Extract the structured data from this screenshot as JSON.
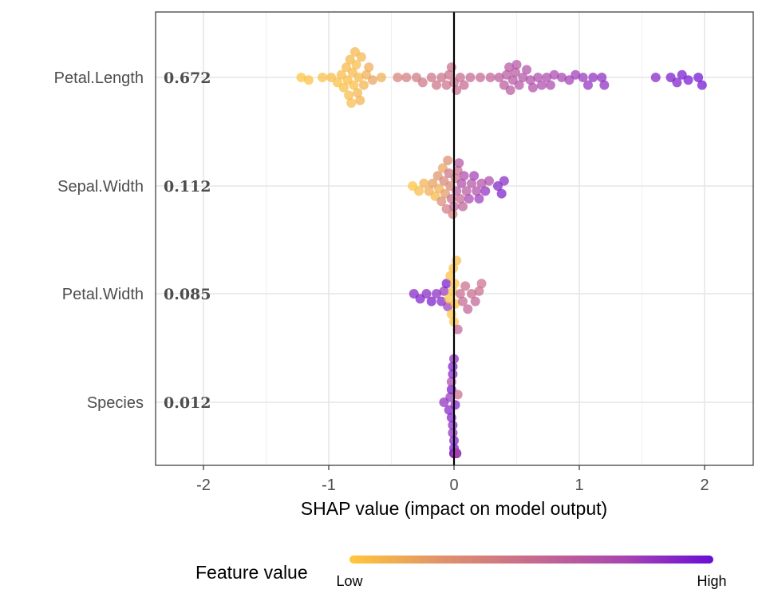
{
  "chart_data": {
    "type": "scatter",
    "subtype": "shap-beeswarm",
    "xlabel": "SHAP value (impact on model output)",
    "xlim": [
      -2.4,
      2.4
    ],
    "xticks": [
      -2,
      -1,
      0,
      1,
      2
    ],
    "xtick_labels": [
      "-2",
      "-1",
      "0",
      "1",
      "2"
    ],
    "grid": true,
    "features": [
      {
        "name": "Petal.Length",
        "importance": "0.672",
        "points": [
          {
            "x": -1.22,
            "v": 0.02
          },
          {
            "x": -1.16,
            "v": 0.03
          },
          {
            "x": -1.05,
            "v": 0.04
          },
          {
            "x": -0.98,
            "v": 0.05
          },
          {
            "x": -0.93,
            "v": 0.04
          },
          {
            "x": -0.9,
            "v": 0.06
          },
          {
            "x": -0.88,
            "v": 0.05
          },
          {
            "x": -0.86,
            "v": 0.07
          },
          {
            "x": -0.85,
            "v": 0.05
          },
          {
            "x": -0.84,
            "v": 0.06
          },
          {
            "x": -0.83,
            "v": 0.08
          },
          {
            "x": -0.82,
            "v": 0.06
          },
          {
            "x": -0.81,
            "v": 0.07
          },
          {
            "x": -0.8,
            "v": 0.05
          },
          {
            "x": -0.79,
            "v": 0.08
          },
          {
            "x": -0.78,
            "v": 0.06
          },
          {
            "x": -0.77,
            "v": 0.09
          },
          {
            "x": -0.76,
            "v": 0.07
          },
          {
            "x": -0.75,
            "v": 0.1
          },
          {
            "x": -0.74,
            "v": 0.08
          },
          {
            "x": -0.72,
            "v": 0.1
          },
          {
            "x": -0.7,
            "v": 0.12
          },
          {
            "x": -0.68,
            "v": 0.14
          },
          {
            "x": -0.65,
            "v": 0.18
          },
          {
            "x": -0.58,
            "v": 0.12
          },
          {
            "x": -0.45,
            "v": 0.36
          },
          {
            "x": -0.38,
            "v": 0.4
          },
          {
            "x": -0.3,
            "v": 0.42
          },
          {
            "x": -0.25,
            "v": 0.44
          },
          {
            "x": -0.18,
            "v": 0.45
          },
          {
            "x": -0.14,
            "v": 0.46
          },
          {
            "x": -0.1,
            "v": 0.47
          },
          {
            "x": -0.06,
            "v": 0.47
          },
          {
            "x": -0.04,
            "v": 0.48
          },
          {
            "x": -0.02,
            "v": 0.48
          },
          {
            "x": 0.0,
            "v": 0.49
          },
          {
            "x": 0.02,
            "v": 0.5
          },
          {
            "x": 0.05,
            "v": 0.5
          },
          {
            "x": 0.08,
            "v": 0.52
          },
          {
            "x": 0.13,
            "v": 0.52
          },
          {
            "x": 0.21,
            "v": 0.53
          },
          {
            "x": 0.29,
            "v": 0.55
          },
          {
            "x": 0.36,
            "v": 0.6
          },
          {
            "x": 0.4,
            "v": 0.62
          },
          {
            "x": 0.42,
            "v": 0.63
          },
          {
            "x": 0.44,
            "v": 0.64
          },
          {
            "x": 0.45,
            "v": 0.63
          },
          {
            "x": 0.47,
            "v": 0.65
          },
          {
            "x": 0.49,
            "v": 0.64
          },
          {
            "x": 0.5,
            "v": 0.66
          },
          {
            "x": 0.52,
            "v": 0.66
          },
          {
            "x": 0.55,
            "v": 0.67
          },
          {
            "x": 0.58,
            "v": 0.68
          },
          {
            "x": 0.61,
            "v": 0.69
          },
          {
            "x": 0.63,
            "v": 0.7
          },
          {
            "x": 0.67,
            "v": 0.71
          },
          {
            "x": 0.7,
            "v": 0.72
          },
          {
            "x": 0.74,
            "v": 0.72
          },
          {
            "x": 0.77,
            "v": 0.73
          },
          {
            "x": 0.8,
            "v": 0.74
          },
          {
            "x": 0.86,
            "v": 0.76
          },
          {
            "x": 0.92,
            "v": 0.78
          },
          {
            "x": 0.97,
            "v": 0.8
          },
          {
            "x": 1.03,
            "v": 0.82
          },
          {
            "x": 1.07,
            "v": 0.84
          },
          {
            "x": 1.11,
            "v": 0.85
          },
          {
            "x": 1.18,
            "v": 0.86
          },
          {
            "x": 1.2,
            "v": 0.86
          },
          {
            "x": 1.61,
            "v": 0.9
          },
          {
            "x": 1.73,
            "v": 0.94
          },
          {
            "x": 1.78,
            "v": 0.93
          },
          {
            "x": 1.82,
            "v": 0.95
          },
          {
            "x": 1.87,
            "v": 0.96
          },
          {
            "x": 1.95,
            "v": 0.98
          },
          {
            "x": 1.98,
            "v": 0.97
          }
        ]
      },
      {
        "name": "Sepal.Width",
        "importance": "0.112",
        "points": [
          {
            "x": -0.33,
            "v": 0.02
          },
          {
            "x": -0.28,
            "v": 0.06
          },
          {
            "x": -0.24,
            "v": 0.1
          },
          {
            "x": -0.2,
            "v": 0.14
          },
          {
            "x": -0.17,
            "v": 0.2
          },
          {
            "x": -0.15,
            "v": 0.08
          },
          {
            "x": -0.13,
            "v": 0.25
          },
          {
            "x": -0.12,
            "v": 0.12
          },
          {
            "x": -0.1,
            "v": 0.3
          },
          {
            "x": -0.09,
            "v": 0.18
          },
          {
            "x": -0.08,
            "v": 0.35
          },
          {
            "x": -0.07,
            "v": 0.22
          },
          {
            "x": -0.06,
            "v": 0.4
          },
          {
            "x": -0.05,
            "v": 0.28
          },
          {
            "x": -0.04,
            "v": 0.45
          },
          {
            "x": -0.03,
            "v": 0.32
          },
          {
            "x": -0.02,
            "v": 0.5
          },
          {
            "x": -0.01,
            "v": 0.38
          },
          {
            "x": 0.0,
            "v": 0.55
          },
          {
            "x": 0.01,
            "v": 0.42
          },
          {
            "x": 0.02,
            "v": 0.6
          },
          {
            "x": 0.03,
            "v": 0.48
          },
          {
            "x": 0.04,
            "v": 0.65
          },
          {
            "x": 0.05,
            "v": 0.52
          },
          {
            "x": 0.06,
            "v": 0.7
          },
          {
            "x": 0.07,
            "v": 0.58
          },
          {
            "x": 0.08,
            "v": 0.72
          },
          {
            "x": 0.1,
            "v": 0.62
          },
          {
            "x": 0.12,
            "v": 0.75
          },
          {
            "x": 0.14,
            "v": 0.66
          },
          {
            "x": 0.16,
            "v": 0.78
          },
          {
            "x": 0.18,
            "v": 0.7
          },
          {
            "x": 0.2,
            "v": 0.8
          },
          {
            "x": 0.22,
            "v": 0.68
          },
          {
            "x": 0.25,
            "v": 0.85
          },
          {
            "x": 0.28,
            "v": 0.72
          },
          {
            "x": 0.35,
            "v": 0.9
          },
          {
            "x": 0.38,
            "v": 0.93
          },
          {
            "x": 0.4,
            "v": 0.88
          }
        ]
      },
      {
        "name": "Petal.Width",
        "importance": "0.085",
        "points": [
          {
            "x": -0.32,
            "v": 0.9
          },
          {
            "x": -0.27,
            "v": 0.92
          },
          {
            "x": -0.22,
            "v": 0.88
          },
          {
            "x": -0.18,
            "v": 0.94
          },
          {
            "x": -0.14,
            "v": 0.86
          },
          {
            "x": -0.1,
            "v": 0.9
          },
          {
            "x": -0.08,
            "v": 0.82
          },
          {
            "x": -0.06,
            "v": 0.95
          },
          {
            "x": -0.05,
            "v": 0.8
          },
          {
            "x": -0.04,
            "v": 0.02
          },
          {
            "x": -0.03,
            "v": 0.03
          },
          {
            "x": -0.02,
            "v": 0.02
          },
          {
            "x": -0.01,
            "v": 0.04
          },
          {
            "x": -0.005,
            "v": 0.03
          },
          {
            "x": 0.0,
            "v": 0.02
          },
          {
            "x": 0.005,
            "v": 0.04
          },
          {
            "x": 0.01,
            "v": 0.03
          },
          {
            "x": 0.02,
            "v": 0.05
          },
          {
            "x": 0.03,
            "v": 0.55
          },
          {
            "x": 0.05,
            "v": 0.5
          },
          {
            "x": 0.07,
            "v": 0.52
          },
          {
            "x": 0.09,
            "v": 0.48
          },
          {
            "x": 0.11,
            "v": 0.55
          },
          {
            "x": 0.14,
            "v": 0.5
          },
          {
            "x": 0.17,
            "v": 0.56
          },
          {
            "x": 0.2,
            "v": 0.5
          },
          {
            "x": 0.22,
            "v": 0.47
          }
        ]
      },
      {
        "name": "Species",
        "importance": "0.012",
        "points": [
          {
            "x": -0.08,
            "v": 0.85
          },
          {
            "x": -0.04,
            "v": 0.9
          },
          {
            "x": -0.03,
            "v": 0.82
          },
          {
            "x": -0.02,
            "v": 0.95
          },
          {
            "x": -0.01,
            "v": 0.88
          },
          {
            "x": 0.0,
            "v": 0.92
          },
          {
            "x": 0.0,
            "v": 0.86
          },
          {
            "x": 0.01,
            "v": 0.9
          },
          {
            "x": 0.01,
            "v": 0.94
          },
          {
            "x": 0.02,
            "v": 0.88
          },
          {
            "x": 0.02,
            "v": 0.92
          },
          {
            "x": -0.01,
            "v": 0.9
          },
          {
            "x": 0.0,
            "v": 0.95
          },
          {
            "x": 0.01,
            "v": 0.87
          },
          {
            "x": -0.02,
            "v": 0.91
          },
          {
            "x": 0.0,
            "v": 0.89
          },
          {
            "x": 0.01,
            "v": 0.93
          },
          {
            "x": -0.01,
            "v": 0.86
          },
          {
            "x": 0.02,
            "v": 0.9
          },
          {
            "x": 0.0,
            "v": 0.92
          },
          {
            "x": -0.01,
            "v": 0.94
          },
          {
            "x": 0.01,
            "v": 0.88
          },
          {
            "x": 0.0,
            "v": 0.9
          },
          {
            "x": 0.03,
            "v": 0.5
          },
          {
            "x": 0.02,
            "v": 0.7
          },
          {
            "x": -0.02,
            "v": 0.75
          },
          {
            "x": 0.01,
            "v": 0.8
          }
        ]
      }
    ],
    "legend": {
      "title": "Feature value",
      "low_label": "Low",
      "high_label": "High",
      "placement": "bottom",
      "colors": [
        "#FFC73A",
        "#E0936A",
        "#C76B8E",
        "#A946B0",
        "#6A0DD6"
      ]
    },
    "zero_line": true
  }
}
